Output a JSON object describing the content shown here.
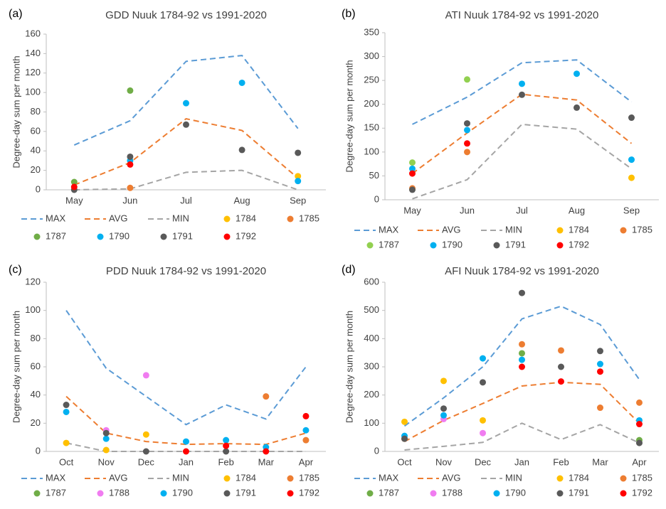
{
  "chart_data": [
    {
      "type": "line",
      "label": "(a)",
      "title": "GDD Nuuk 1784-92 vs  1991-2020",
      "y_label": "Degree-day sum per month",
      "categories": [
        "May",
        "Jun",
        "Jul",
        "Aug",
        "Sep"
      ],
      "ylim": [
        0,
        160
      ],
      "yticks": [
        0,
        20,
        40,
        60,
        80,
        100,
        120,
        140,
        160
      ],
      "series": [
        {
          "name": "MAX",
          "mark": "line",
          "color": "#5b9bd5",
          "values": [
            46,
            71,
            132,
            138,
            63
          ]
        },
        {
          "name": "AVG",
          "mark": "line",
          "color": "#ed7d31",
          "values": [
            5,
            28,
            73,
            61,
            12
          ]
        },
        {
          "name": "MIN",
          "mark": "line",
          "color": "#a5a5a5",
          "values": [
            0,
            1,
            18,
            20,
            0
          ]
        },
        {
          "name": "1784",
          "mark": "point",
          "color": "#ffc000",
          "values": [
            null,
            null,
            null,
            null,
            14
          ]
        },
        {
          "name": "1785",
          "mark": "point",
          "color": "#ed7d31",
          "values": [
            null,
            2,
            null,
            null,
            null
          ]
        },
        {
          "name": "1787",
          "mark": "point",
          "color": "#70ad47",
          "values": [
            8,
            102,
            null,
            null,
            null
          ]
        },
        {
          "name": "1790",
          "mark": "point",
          "color": "#00b0f0",
          "values": [
            null,
            30,
            89,
            110,
            9
          ]
        },
        {
          "name": "1791",
          "mark": "point",
          "color": "#595959",
          "values": [
            0,
            34,
            67,
            41,
            38
          ]
        },
        {
          "name": "1792",
          "mark": "point",
          "color": "#ff0000",
          "values": [
            3,
            26,
            null,
            null,
            null
          ]
        }
      ]
    },
    {
      "type": "line",
      "label": "(b)",
      "title": "ATI Nuuk 1784-92 vs 1991-2020",
      "y_label": "Degree-day sum per month",
      "categories": [
        "May",
        "Jun",
        "Jul",
        "Aug",
        "Sep"
      ],
      "ylim": [
        0,
        350
      ],
      "yticks": [
        0,
        50,
        100,
        150,
        200,
        250,
        300,
        350
      ],
      "series": [
        {
          "name": "MAX",
          "mark": "line",
          "color": "#5b9bd5",
          "values": [
            158,
            215,
            287,
            293,
            205
          ]
        },
        {
          "name": "AVG",
          "mark": "line",
          "color": "#ed7d31",
          "values": [
            55,
            140,
            221,
            209,
            118
          ]
        },
        {
          "name": "MIN",
          "mark": "line",
          "color": "#a5a5a5",
          "values": [
            2,
            42,
            158,
            148,
            65
          ]
        },
        {
          "name": "1784",
          "mark": "point",
          "color": "#ffc000",
          "values": [
            22,
            null,
            null,
            null,
            46
          ]
        },
        {
          "name": "1785",
          "mark": "point",
          "color": "#ed7d31",
          "values": [
            24,
            100,
            null,
            null,
            null
          ]
        },
        {
          "name": "1787",
          "mark": "point",
          "color": "#92d050",
          "values": [
            78,
            252,
            null,
            null,
            null
          ]
        },
        {
          "name": "1790",
          "mark": "point",
          "color": "#00b0f0",
          "values": [
            65,
            146,
            243,
            264,
            84
          ]
        },
        {
          "name": "1791",
          "mark": "point",
          "color": "#595959",
          "values": [
            21,
            160,
            220,
            193,
            172
          ]
        },
        {
          "name": "1792",
          "mark": "point",
          "color": "#ff0000",
          "values": [
            55,
            118,
            null,
            null,
            null
          ]
        }
      ]
    },
    {
      "type": "line",
      "label": "(c)",
      "title": "PDD Nuuk 1784-92 vs 1991-2020",
      "y_label": "Degree-day sum per month",
      "categories": [
        "Oct",
        "Nov",
        "Dec",
        "Jan",
        "Feb",
        "Mar",
        "Apr"
      ],
      "ylim": [
        0,
        120
      ],
      "yticks": [
        0,
        20,
        40,
        60,
        80,
        100,
        120
      ],
      "series": [
        {
          "name": "MAX",
          "mark": "line",
          "color": "#5b9bd5",
          "values": [
            100,
            59,
            39,
            19,
            33,
            23,
            60
          ]
        },
        {
          "name": "AVG",
          "mark": "line",
          "color": "#ed7d31",
          "values": [
            39,
            13,
            7,
            5,
            5.5,
            5,
            13
          ]
        },
        {
          "name": "MIN",
          "mark": "line",
          "color": "#a5a5a5",
          "values": [
            6,
            0,
            0,
            0,
            0,
            0,
            0
          ]
        },
        {
          "name": "1784",
          "mark": "point",
          "color": "#ffc000",
          "values": [
            6,
            1,
            12,
            null,
            null,
            null,
            null
          ]
        },
        {
          "name": "1785",
          "mark": "point",
          "color": "#ed7d31",
          "values": [
            null,
            null,
            null,
            null,
            null,
            39,
            8
          ]
        },
        {
          "name": "1787",
          "mark": "point",
          "color": "#70ad47",
          "values": [
            null,
            null,
            null,
            null,
            null,
            null,
            null
          ]
        },
        {
          "name": "1788",
          "mark": "point",
          "color": "#f07cf0",
          "values": [
            null,
            15,
            54,
            null,
            null,
            null,
            null
          ]
        },
        {
          "name": "1790",
          "mark": "point",
          "color": "#00b0f0",
          "values": [
            28,
            9,
            null,
            7,
            8,
            3,
            15
          ]
        },
        {
          "name": "1791",
          "mark": "point",
          "color": "#595959",
          "values": [
            33,
            13,
            0,
            null,
            0,
            null,
            null
          ]
        },
        {
          "name": "1792",
          "mark": "point",
          "color": "#ff0000",
          "values": [
            null,
            null,
            null,
            0,
            4,
            0,
            25
          ]
        }
      ]
    },
    {
      "type": "line",
      "label": "(d)",
      "title": "AFI Nuuk 1784-92 vs 1991-2020",
      "y_label": "Degree-day sum per month",
      "categories": [
        "Oct",
        "Nov",
        "Dec",
        "Jan",
        "Feb",
        "Mar",
        "Apr"
      ],
      "ylim": [
        0,
        600
      ],
      "yticks": [
        0,
        100,
        200,
        300,
        400,
        500,
        600
      ],
      "series": [
        {
          "name": "MAX",
          "mark": "line",
          "color": "#5b9bd5",
          "values": [
            90,
            190,
            300,
            470,
            515,
            450,
            255
          ]
        },
        {
          "name": "AVG",
          "mark": "line",
          "color": "#ed7d31",
          "values": [
            35,
            110,
            170,
            232,
            245,
            238,
            100
          ]
        },
        {
          "name": "MIN",
          "mark": "line",
          "color": "#a5a5a5",
          "values": [
            5,
            18,
            32,
            100,
            42,
            95,
            30
          ]
        },
        {
          "name": "1784",
          "mark": "point",
          "color": "#ffc000",
          "values": [
            105,
            250,
            110,
            null,
            null,
            null,
            null
          ]
        },
        {
          "name": "1785",
          "mark": "point",
          "color": "#ed7d31",
          "values": [
            45,
            null,
            null,
            380,
            358,
            155,
            173
          ]
        },
        {
          "name": "1787",
          "mark": "point",
          "color": "#70ad47",
          "values": [
            null,
            null,
            null,
            348,
            null,
            null,
            40
          ]
        },
        {
          "name": "1788",
          "mark": "point",
          "color": "#f07cf0",
          "values": [
            null,
            115,
            65,
            null,
            null,
            null,
            null
          ]
        },
        {
          "name": "1790",
          "mark": "point",
          "color": "#00b0f0",
          "values": [
            55,
            128,
            330,
            325,
            null,
            310,
            110
          ]
        },
        {
          "name": "1791",
          "mark": "point",
          "color": "#595959",
          "values": [
            45,
            152,
            245,
            562,
            300,
            356,
            30
          ]
        },
        {
          "name": "1792",
          "mark": "point",
          "color": "#ff0000",
          "values": [
            null,
            null,
            null,
            300,
            248,
            283,
            97
          ]
        }
      ]
    }
  ]
}
